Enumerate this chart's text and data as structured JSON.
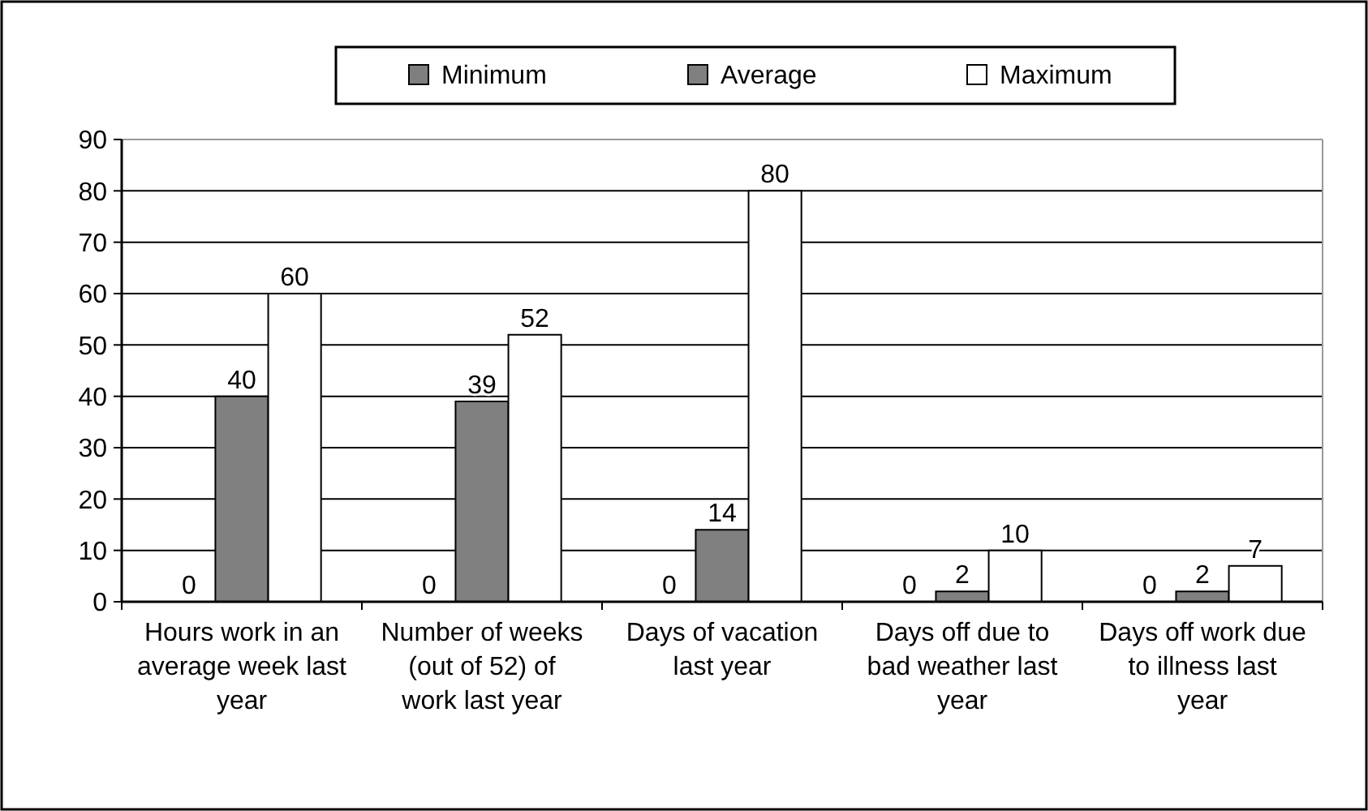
{
  "chart_data": {
    "type": "bar",
    "categories": [
      "Hours work in an average week last year",
      "Number of weeks (out of 52) of work last year",
      "Days of vacation last year",
      "Days off due to bad weather last year",
      "Days off work due to illness last year"
    ],
    "series": [
      {
        "name": "Minimum",
        "color": "#7f7f7f",
        "values": [
          0,
          0,
          0,
          0,
          0
        ]
      },
      {
        "name": "Average",
        "color": "#808080",
        "values": [
          40,
          39,
          14,
          2,
          2
        ]
      },
      {
        "name": "Maximum",
        "color": "#ffffff",
        "values": [
          60,
          52,
          80,
          10,
          7
        ]
      }
    ],
    "ylim": [
      0,
      90
    ],
    "yticks": [
      0,
      10,
      20,
      30,
      40,
      50,
      60,
      70,
      80,
      90
    ],
    "grid": "y",
    "legend": "top",
    "data_labels": true
  }
}
